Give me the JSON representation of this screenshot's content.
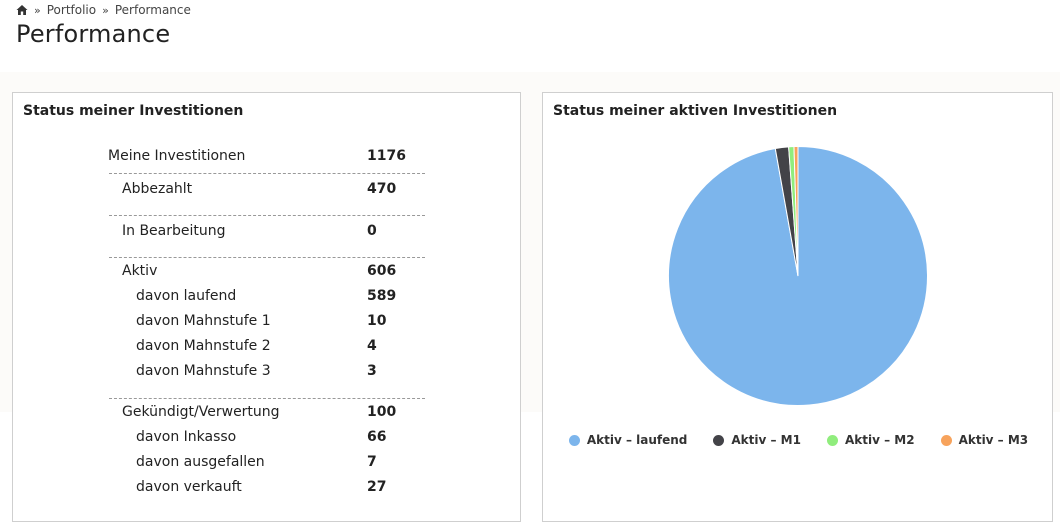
{
  "breadcrumb": {
    "home_icon": "home-icon",
    "separator": "»",
    "items": [
      "Portfolio",
      "Performance"
    ]
  },
  "page_title": "Performance",
  "left_panel": {
    "title": "Status meiner Investitionen",
    "total": {
      "label": "Meine Investitionen",
      "value": "1176"
    },
    "groups": [
      {
        "label": "Abbezahlt",
        "value": "470",
        "sub": []
      },
      {
        "label": "In Bearbeitung",
        "value": "0",
        "sub": []
      },
      {
        "label": "Aktiv",
        "value": "606",
        "sub": [
          {
            "label": "davon laufend",
            "value": "589"
          },
          {
            "label": "davon Mahnstufe 1",
            "value": "10"
          },
          {
            "label": "davon Mahnstufe 2",
            "value": "4"
          },
          {
            "label": "davon Mahnstufe 3",
            "value": "3"
          }
        ]
      },
      {
        "label": "Gekündigt/Verwertung",
        "value": "100",
        "sub": [
          {
            "label": "davon Inkasso",
            "value": "66"
          },
          {
            "label": "davon ausgefallen",
            "value": "7"
          },
          {
            "label": "davon verkauft",
            "value": "27"
          }
        ]
      }
    ]
  },
  "right_panel": {
    "title": "Status meiner aktiven Investitionen"
  },
  "chart_data": {
    "type": "pie",
    "title": "Status meiner aktiven Investitionen",
    "categories": [
      "Aktiv – laufend",
      "Aktiv – M1",
      "Aktiv – M2",
      "Aktiv – M3"
    ],
    "values": [
      589,
      10,
      4,
      3
    ],
    "colors": [
      "#7cb5ec",
      "#434348",
      "#90ed7d",
      "#f7a35c"
    ],
    "legend_position": "bottom"
  }
}
